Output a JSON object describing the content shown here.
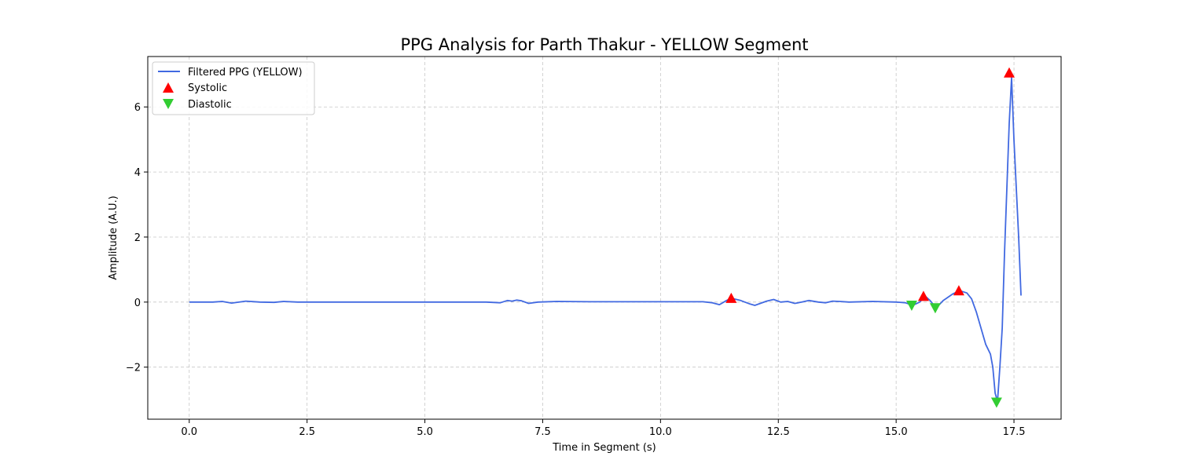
{
  "chart_data": {
    "type": "line",
    "title": "PPG Analysis for Parth Thakur - YELLOW Segment",
    "xlabel": "Time in Segment (s)",
    "ylabel": "Amplitude (A.U.)",
    "xlim": [
      -0.88,
      18.5
    ],
    "ylim": [
      -3.6,
      7.55
    ],
    "xticks": [
      0.0,
      2.5,
      5.0,
      7.5,
      10.0,
      12.5,
      15.0,
      17.5
    ],
    "xtick_labels": [
      "0.0",
      "2.5",
      "5.0",
      "7.5",
      "10.0",
      "12.5",
      "15.0",
      "17.5"
    ],
    "yticks": [
      -2,
      0,
      2,
      4,
      6
    ],
    "ytick_labels": [
      "−2",
      "0",
      "2",
      "4",
      "6"
    ],
    "grid": true,
    "legend_position": "top-left",
    "series": [
      {
        "name": "Filtered PPG (YELLOW)",
        "kind": "line",
        "color": "#4169e1",
        "x": [
          0.0,
          0.5,
          0.7,
          0.9,
          1.2,
          1.5,
          1.8,
          2.0,
          2.3,
          2.6,
          3.0,
          3.5,
          4.0,
          4.5,
          5.0,
          5.5,
          6.0,
          6.3,
          6.6,
          6.75,
          6.85,
          6.95,
          7.05,
          7.2,
          7.4,
          7.8,
          8.5,
          9.5,
          10.5,
          10.9,
          11.1,
          11.25,
          11.4,
          11.5,
          11.7,
          11.9,
          12.0,
          12.1,
          12.25,
          12.4,
          12.55,
          12.7,
          12.85,
          13.0,
          13.15,
          13.35,
          13.5,
          13.65,
          13.8,
          14.0,
          14.5,
          15.0,
          15.2,
          15.35,
          15.5,
          15.62,
          15.72,
          15.85,
          16.0,
          16.2,
          16.35,
          16.5,
          16.6,
          16.7,
          16.8,
          16.9,
          17.0,
          17.05,
          17.1,
          17.15,
          17.2,
          17.25,
          17.3,
          17.4,
          17.45,
          17.5,
          17.6,
          17.65
        ],
        "y": [
          0.0,
          0.0,
          0.02,
          -0.03,
          0.03,
          0.0,
          -0.01,
          0.02,
          0.0,
          0.0,
          0.0,
          0.0,
          0.0,
          0.0,
          0.0,
          0.0,
          0.0,
          0.0,
          -0.02,
          0.05,
          0.03,
          0.06,
          0.04,
          -0.04,
          0.0,
          0.02,
          0.01,
          0.01,
          0.01,
          0.01,
          -0.02,
          -0.08,
          0.05,
          0.12,
          0.05,
          -0.06,
          -0.1,
          -0.05,
          0.03,
          0.08,
          0.0,
          0.02,
          -0.04,
          0.0,
          0.05,
          0.0,
          -0.02,
          0.03,
          0.02,
          0.0,
          0.02,
          0.0,
          -0.02,
          -0.1,
          0.0,
          0.18,
          0.05,
          -0.18,
          0.05,
          0.25,
          0.35,
          0.28,
          0.1,
          -0.3,
          -0.8,
          -1.3,
          -1.6,
          -2.0,
          -2.8,
          -3.05,
          -2.0,
          -0.8,
          1.5,
          5.5,
          6.9,
          5.0,
          2.0,
          0.2
        ]
      },
      {
        "name": "Systolic",
        "kind": "marker",
        "marker": "triangle-up",
        "color": "#ff0000",
        "x": [
          11.5,
          15.58,
          16.33,
          17.4
        ],
        "y": [
          0.12,
          0.18,
          0.35,
          7.05
        ]
      },
      {
        "name": "Diastolic",
        "kind": "marker",
        "marker": "triangle-down",
        "color": "#32cd32",
        "x": [
          15.33,
          15.83,
          17.13
        ],
        "y": [
          -0.1,
          -0.18,
          -3.08
        ]
      }
    ]
  }
}
